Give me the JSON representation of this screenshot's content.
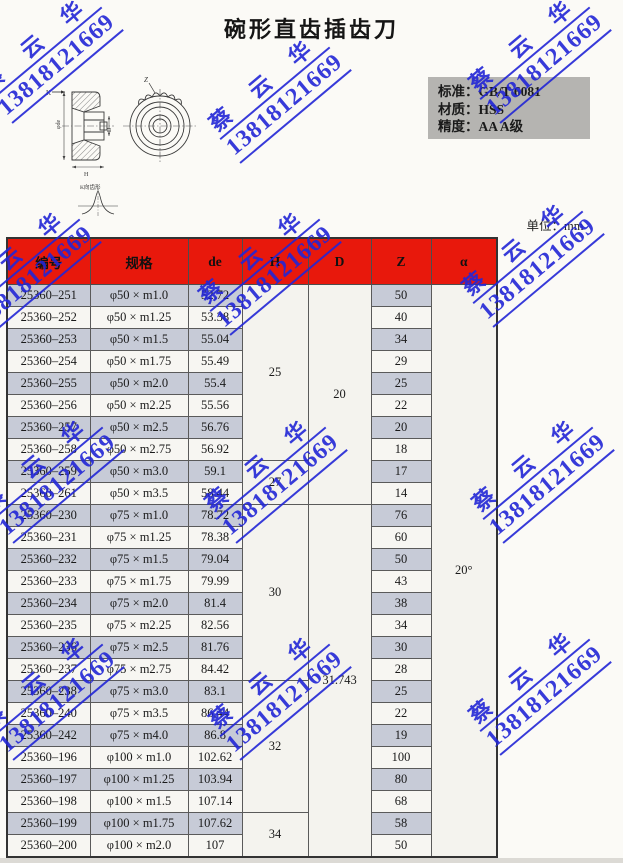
{
  "page": {
    "title": "碗形直齿插齿刀",
    "unit_label": "单位：mm"
  },
  "specs": {
    "lines": [
      "标准：GB/T 6081",
      "材质：HSS",
      "精度：AA A级"
    ]
  },
  "watermark": {
    "name": "蔡 云 华",
    "phone": "13818121669",
    "color": "#2226d6"
  },
  "drawing": {
    "view_label": "K",
    "teeth_label": "Z",
    "diameter_label": "φde",
    "bore_label": "D",
    "height_label": "H",
    "detail_label": "K向齿形"
  },
  "table": {
    "headers": [
      "编号",
      "规格",
      "de",
      "H",
      "D",
      "Z",
      "α"
    ],
    "rows": [
      {
        "model": "25360–251",
        "spec": "φ50 × m1.0",
        "de": "52.72",
        "z": "50"
      },
      {
        "model": "25360–252",
        "spec": "φ50 × m1.25",
        "de": "53.38",
        "z": "40"
      },
      {
        "model": "25360–253",
        "spec": "φ50 × m1.5",
        "de": "55.04",
        "z": "34"
      },
      {
        "model": "25360–254",
        "spec": "φ50 × m1.75",
        "de": "55.49",
        "z": "29"
      },
      {
        "model": "25360–255",
        "spec": "φ50 × m2.0",
        "de": "55.4",
        "z": "25"
      },
      {
        "model": "25360–256",
        "spec": "φ50 × m2.25",
        "de": "55.56",
        "z": "22"
      },
      {
        "model": "25360–257",
        "spec": "φ50 × m2.5",
        "de": "56.76",
        "z": "20"
      },
      {
        "model": "25360–258",
        "spec": "φ50 × m2.75",
        "de": "56.92",
        "z": "18"
      },
      {
        "model": "25360–259",
        "spec": "φ50 × m3.0",
        "de": "59.1",
        "z": "17"
      },
      {
        "model": "25360–261",
        "spec": "φ50 × m3.5",
        "de": "58.44",
        "z": "14"
      },
      {
        "model": "25360–230",
        "spec": "φ75 × m1.0",
        "de": "78.72",
        "z": "76"
      },
      {
        "model": "25360–231",
        "spec": "φ75 × m1.25",
        "de": "78.38",
        "z": "60"
      },
      {
        "model": "25360–232",
        "spec": "φ75 × m1.5",
        "de": "79.04",
        "z": "50"
      },
      {
        "model": "25360–233",
        "spec": "φ75 × m1.75",
        "de": "79.99",
        "z": "43"
      },
      {
        "model": "25360–234",
        "spec": "φ75 × m2.0",
        "de": "81.4",
        "z": "38"
      },
      {
        "model": "25360–235",
        "spec": "φ75 × m2.25",
        "de": "82.56",
        "z": "34"
      },
      {
        "model": "25360–236",
        "spec": "φ75 × m2.5",
        "de": "81.76",
        "z": "30"
      },
      {
        "model": "25360–237",
        "spec": "φ75 × m2.75",
        "de": "84.42",
        "z": "28"
      },
      {
        "model": "25360–238",
        "spec": "φ75 × m3.0",
        "de": "83.1",
        "z": "25"
      },
      {
        "model": "25360–240",
        "spec": "φ75 × m3.5",
        "de": "86.44",
        "z": "22"
      },
      {
        "model": "25360–242",
        "spec": "φ75 × m4.0",
        "de": "86.8",
        "z": "19"
      },
      {
        "model": "25360–196",
        "spec": "φ100 × m1.0",
        "de": "102.62",
        "z": "100"
      },
      {
        "model": "25360–197",
        "spec": "φ100 × m1.25",
        "de": "103.94",
        "z": "80"
      },
      {
        "model": "25360–198",
        "spec": "φ100 × m1.5",
        "de": "107.14",
        "z": "68"
      },
      {
        "model": "25360–199",
        "spec": "φ100 × m1.75",
        "de": "107.62",
        "z": "58"
      },
      {
        "model": "25360–200",
        "spec": "φ100 × m2.0",
        "de": "107",
        "z": "50"
      }
    ],
    "merged": {
      "H": [
        {
          "start": 0,
          "span": 8,
          "value": "25"
        },
        {
          "start": 8,
          "span": 2,
          "value": "27"
        },
        {
          "start": 10,
          "span": 8,
          "value": "30"
        },
        {
          "start": 18,
          "span": 6,
          "value": "32"
        },
        {
          "start": 24,
          "span": 2,
          "value": "34"
        }
      ],
      "D": [
        {
          "start": 0,
          "span": 10,
          "value": "20"
        },
        {
          "start": 10,
          "span": 16,
          "value": "31.743"
        }
      ],
      "alpha": [
        {
          "start": 0,
          "span": 26,
          "value": "20°"
        }
      ]
    },
    "colors": {
      "header_bg": "#e8180c",
      "row_shaded": "#c7cbd7",
      "row_plain": "#f7f6f2",
      "merged_bg": "#f4f3ee"
    }
  }
}
